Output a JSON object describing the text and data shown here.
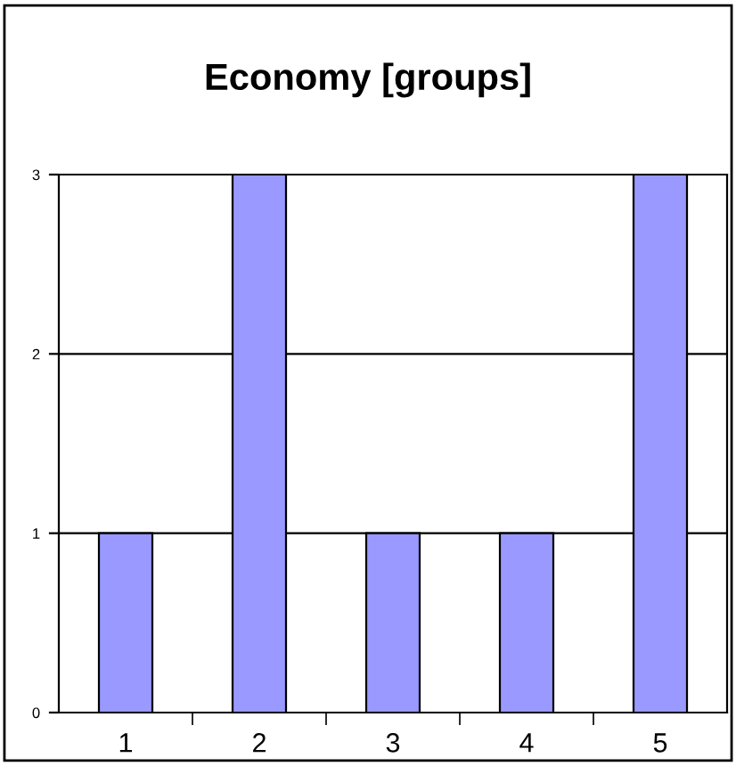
{
  "chart_data": {
    "type": "bar",
    "title": "Economy [groups]",
    "categories": [
      "1",
      "2",
      "3",
      "4",
      "5"
    ],
    "values": [
      1,
      3,
      1,
      1,
      3
    ],
    "color": "#9999ff",
    "ylim": [
      0,
      3
    ],
    "yticks": [
      0,
      1,
      2,
      3
    ],
    "grid": "y"
  }
}
